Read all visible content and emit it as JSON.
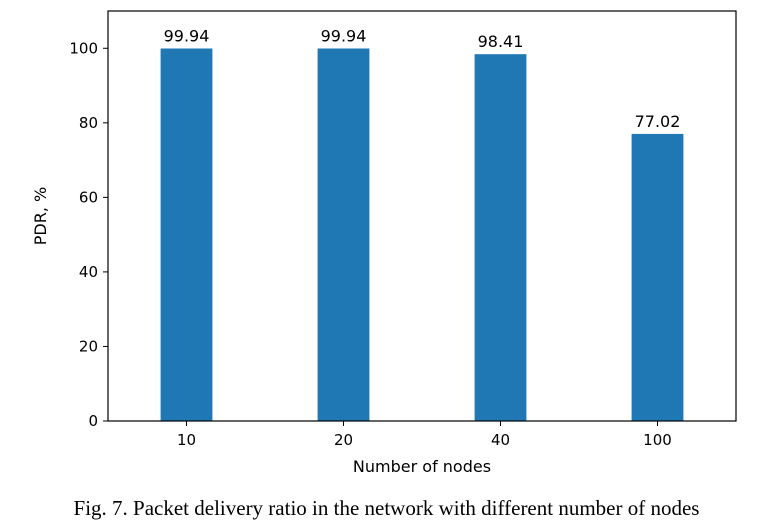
{
  "chart_data": {
    "type": "bar",
    "categories": [
      "10",
      "20",
      "40",
      "100"
    ],
    "values": [
      99.94,
      99.94,
      98.41,
      77.02
    ],
    "data_labels": [
      "99.94",
      "99.94",
      "98.41",
      "77.02"
    ],
    "xlabel": "Number of nodes",
    "ylabel": "PDR, %",
    "ylim": [
      0,
      110
    ],
    "yticks": [
      0,
      20,
      40,
      60,
      80,
      100
    ],
    "bar_color": "#1f77b4",
    "grid": false
  },
  "caption": "Fig. 7. Packet delivery ratio in the network with different number of nodes"
}
